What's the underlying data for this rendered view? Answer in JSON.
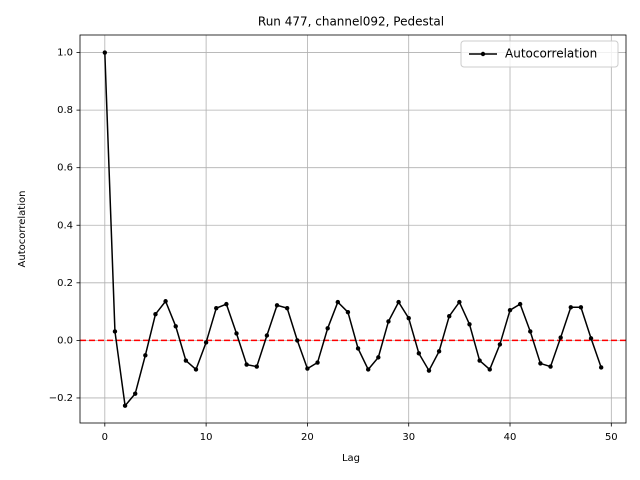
{
  "chart_data": {
    "type": "line",
    "title": "Run 477, channel092, Pedestal",
    "x_label": "Lag",
    "y_label": "Autocorrelation",
    "x": [
      0,
      1,
      2,
      3,
      4,
      5,
      6,
      7,
      8,
      9,
      10,
      11,
      12,
      13,
      14,
      15,
      16,
      17,
      18,
      19,
      20,
      21,
      22,
      23,
      24,
      25,
      26,
      27,
      28,
      29,
      30,
      31,
      32,
      33,
      34,
      35,
      36,
      37,
      38,
      39,
      40,
      41,
      42,
      43,
      44,
      45,
      46,
      47,
      48,
      49
    ],
    "series": [
      {
        "name": "Autocorrelation",
        "color": "#000000",
        "values": [
          1.0,
          0.031,
          -0.227,
          -0.185,
          -0.052,
          0.091,
          0.136,
          0.049,
          -0.07,
          -0.101,
          -0.007,
          0.112,
          0.126,
          0.024,
          -0.084,
          -0.091,
          0.017,
          0.122,
          0.112,
          0.0,
          -0.098,
          -0.077,
          0.042,
          0.133,
          0.098,
          -0.028,
          -0.101,
          -0.059,
          0.066,
          0.133,
          0.077,
          -0.045,
          -0.105,
          -0.038,
          0.084,
          0.133,
          0.056,
          -0.07,
          -0.101,
          -0.014,
          0.105,
          0.126,
          0.031,
          -0.08,
          -0.091,
          0.01,
          0.115,
          0.115,
          0.007,
          -0.094
        ]
      }
    ],
    "hline": {
      "value": 0,
      "color": "#ff0000"
    },
    "xlim": [
      -2.45,
      51.45
    ],
    "ylim": [
      -0.287,
      1.061
    ],
    "xticks": [
      0,
      10,
      20,
      30,
      40,
      50
    ],
    "yticks": [
      {
        "value": -0.2,
        "label": "−0.2"
      },
      {
        "value": 0,
        "label": "0.0"
      },
      {
        "value": 0.2,
        "label": "0.2"
      },
      {
        "value": 0.4,
        "label": "0.4"
      },
      {
        "value": 0.6,
        "label": "0.6"
      },
      {
        "value": 0.8,
        "label": "0.8"
      },
      {
        "value": 1.0,
        "label": "1.0"
      }
    ],
    "grid": true,
    "legend": "upper-right"
  }
}
